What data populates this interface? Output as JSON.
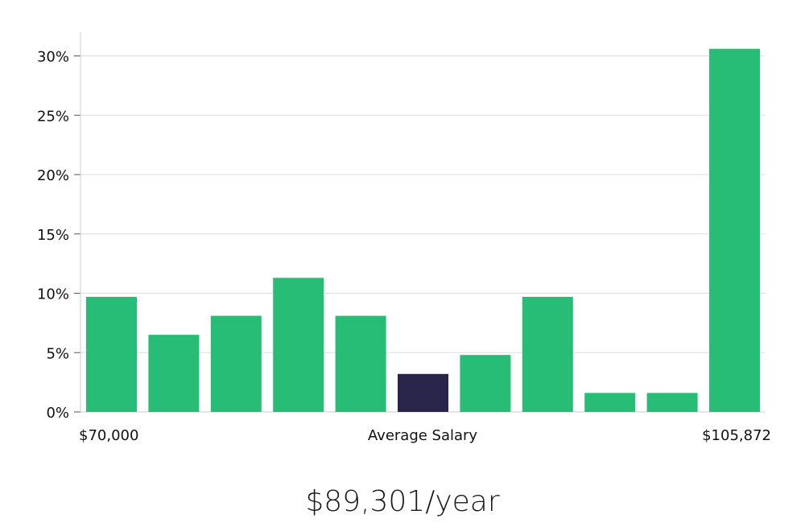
{
  "salary": {
    "headline": "$89,301/year"
  },
  "chart_data": {
    "type": "bar",
    "values": [
      9.7,
      6.5,
      8.1,
      11.3,
      8.1,
      3.2,
      4.8,
      9.7,
      1.6,
      1.6,
      30.6
    ],
    "highlight_index": 5,
    "ylim": [
      0,
      32
    ],
    "yticks": [
      0,
      5,
      10,
      15,
      20,
      25,
      30
    ],
    "ytick_labels": [
      "0%",
      "5%",
      "10%",
      "15%",
      "20%",
      "25%",
      "30%"
    ],
    "x_range_min_label": "$70,000",
    "x_center_label": "Average Salary",
    "x_range_max_label": "$105,872",
    "grid": true,
    "colors": {
      "bar": "#28bd76",
      "highlight": "#29244a",
      "grid": "#dddddd",
      "axis": "#cccccc"
    }
  }
}
